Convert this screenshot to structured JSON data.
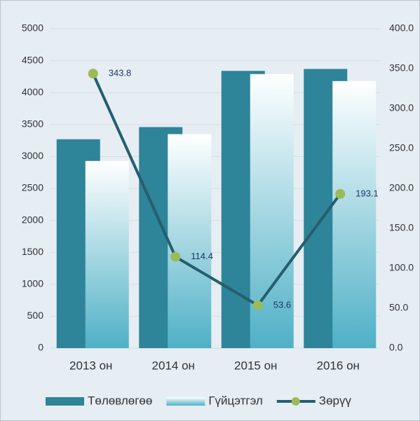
{
  "chart_data": {
    "type": "bar-line",
    "categories": [
      "2013 он",
      "2014 он",
      "2015 он",
      "2016 он"
    ],
    "series": [
      {
        "name": "Төлөвлөгөө",
        "type": "bar",
        "color": "#2e8499",
        "values": [
          3270,
          3460,
          4340,
          4370
        ]
      },
      {
        "name": "Гүйцэтгэл",
        "type": "bar",
        "color": "#4fb0c6",
        "values": [
          2930,
          3350,
          4290,
          4180
        ]
      },
      {
        "name": "Зөрүү",
        "type": "line",
        "axis": "y2",
        "color": "#255e6e",
        "marker_color": "#9bbb59",
        "values": [
          343.8,
          114.4,
          53.6,
          193.1
        ]
      }
    ],
    "ylim": [
      0,
      5000
    ],
    "yticks": [
      0,
      500,
      1000,
      1500,
      2000,
      2500,
      3000,
      3500,
      4000,
      4500,
      5000
    ],
    "y2lim": [
      0,
      400
    ],
    "y2ticks": [
      {
        "value": 0,
        "label": "0.0"
      },
      {
        "value": 50,
        "label": "50.0"
      },
      {
        "value": 100,
        "label": "100.0"
      },
      {
        "value": 150,
        "label": "150.0"
      },
      {
        "value": 200,
        "label": "200.0"
      },
      {
        "value": 250,
        "label": "250.0"
      },
      {
        "value": 300,
        "label": "300.0"
      },
      {
        "value": 350,
        "label": "350.0"
      },
      {
        "value": 400,
        "label": "400.0"
      }
    ],
    "grid": true,
    "legend": "bottom"
  }
}
